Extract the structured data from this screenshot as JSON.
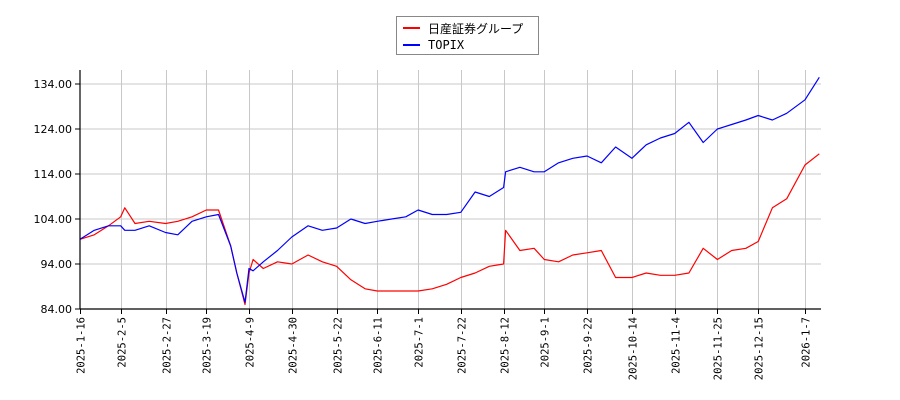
{
  "chart_data": {
    "type": "line",
    "title": "",
    "xlabel": "",
    "ylabel": "",
    "ylim": [
      84,
      136
    ],
    "grid": true,
    "legend_position": "top-center",
    "y_ticks": [
      "84.00",
      "94.00",
      "104.00",
      "114.00",
      "124.00",
      "134.00"
    ],
    "x_ticks": [
      "2025-1-16",
      "2025-2-5",
      "2025-2-27",
      "2025-3-19",
      "2025-4-9",
      "2025-4-30",
      "2025-5-22",
      "2025-6-11",
      "2025-7-1",
      "2025-7-22",
      "2025-8-12",
      "2025-9-1",
      "2025-9-22",
      "2025-10-14",
      "2025-11-4",
      "2025-11-25",
      "2025-12-15",
      "2026-1-7"
    ],
    "x": [
      "2025-1-16",
      "2025-1-23",
      "2025-1-30",
      "2025-2-5",
      "2025-2-7",
      "2025-2-12",
      "2025-2-19",
      "2025-2-27",
      "2025-3-5",
      "2025-3-12",
      "2025-3-19",
      "2025-3-25",
      "2025-3-31",
      "2025-4-3",
      "2025-4-7",
      "2025-4-9",
      "2025-4-11",
      "2025-4-16",
      "2025-4-23",
      "2025-4-30",
      "2025-5-8",
      "2025-5-15",
      "2025-5-22",
      "2025-5-29",
      "2025-6-5",
      "2025-6-11",
      "2025-6-18",
      "2025-6-25",
      "2025-7-1",
      "2025-7-8",
      "2025-7-15",
      "2025-7-22",
      "2025-7-29",
      "2025-8-5",
      "2025-8-12",
      "2025-8-13",
      "2025-8-20",
      "2025-8-27",
      "2025-9-1",
      "2025-9-8",
      "2025-9-15",
      "2025-9-22",
      "2025-9-29",
      "2025-10-6",
      "2025-10-14",
      "2025-10-21",
      "2025-10-28",
      "2025-11-4",
      "2025-11-11",
      "2025-11-18",
      "2025-11-25",
      "2025-12-2",
      "2025-12-9",
      "2025-12-15",
      "2025-12-22",
      "2025-12-29",
      "2026-1-7",
      "2026-1-14"
    ],
    "series": [
      {
        "name": "日産証券グループ",
        "color": "#ff0000",
        "values": [
          99.5,
          100.5,
          102.5,
          104.5,
          106.5,
          103.0,
          103.5,
          103.0,
          103.5,
          104.5,
          106.0,
          106.0,
          98.0,
          92.0,
          85.0,
          92.0,
          95.0,
          93.0,
          94.5,
          94.0,
          96.0,
          94.5,
          93.5,
          90.5,
          88.5,
          88.0,
          88.0,
          88.0,
          88.0,
          88.5,
          89.5,
          91.0,
          92.0,
          93.5,
          94.0,
          101.5,
          97.0,
          97.5,
          95.0,
          94.5,
          96.0,
          96.5,
          97.0,
          91.0,
          91.0,
          92.0,
          91.5,
          91.5,
          92.0,
          97.5,
          95.0,
          97.0,
          97.5,
          99.0,
          106.5,
          108.5,
          116.0,
          118.5
        ]
      },
      {
        "name": "TOPIX",
        "color": "#0000ff",
        "values": [
          99.5,
          101.5,
          102.5,
          102.5,
          101.5,
          101.5,
          102.5,
          101.0,
          100.5,
          103.5,
          104.5,
          105.0,
          98.0,
          92.0,
          85.5,
          93.0,
          92.5,
          94.5,
          97.0,
          100.0,
          102.5,
          101.5,
          102.0,
          104.0,
          103.0,
          103.5,
          104.0,
          104.5,
          106.0,
          105.0,
          105.0,
          105.5,
          110.0,
          109.0,
          111.0,
          114.5,
          115.5,
          114.5,
          114.5,
          116.5,
          117.5,
          118.0,
          116.5,
          120.0,
          117.5,
          120.5,
          122.0,
          123.0,
          125.5,
          121.0,
          124.0,
          125.0,
          126.0,
          127.0,
          126.0,
          127.5,
          130.5,
          135.5
        ]
      }
    ]
  },
  "legend": {
    "items": [
      {
        "label": "日産証券グループ",
        "color": "#ff0000"
      },
      {
        "label": "TOPIX",
        "color": "#0000ff"
      }
    ]
  }
}
